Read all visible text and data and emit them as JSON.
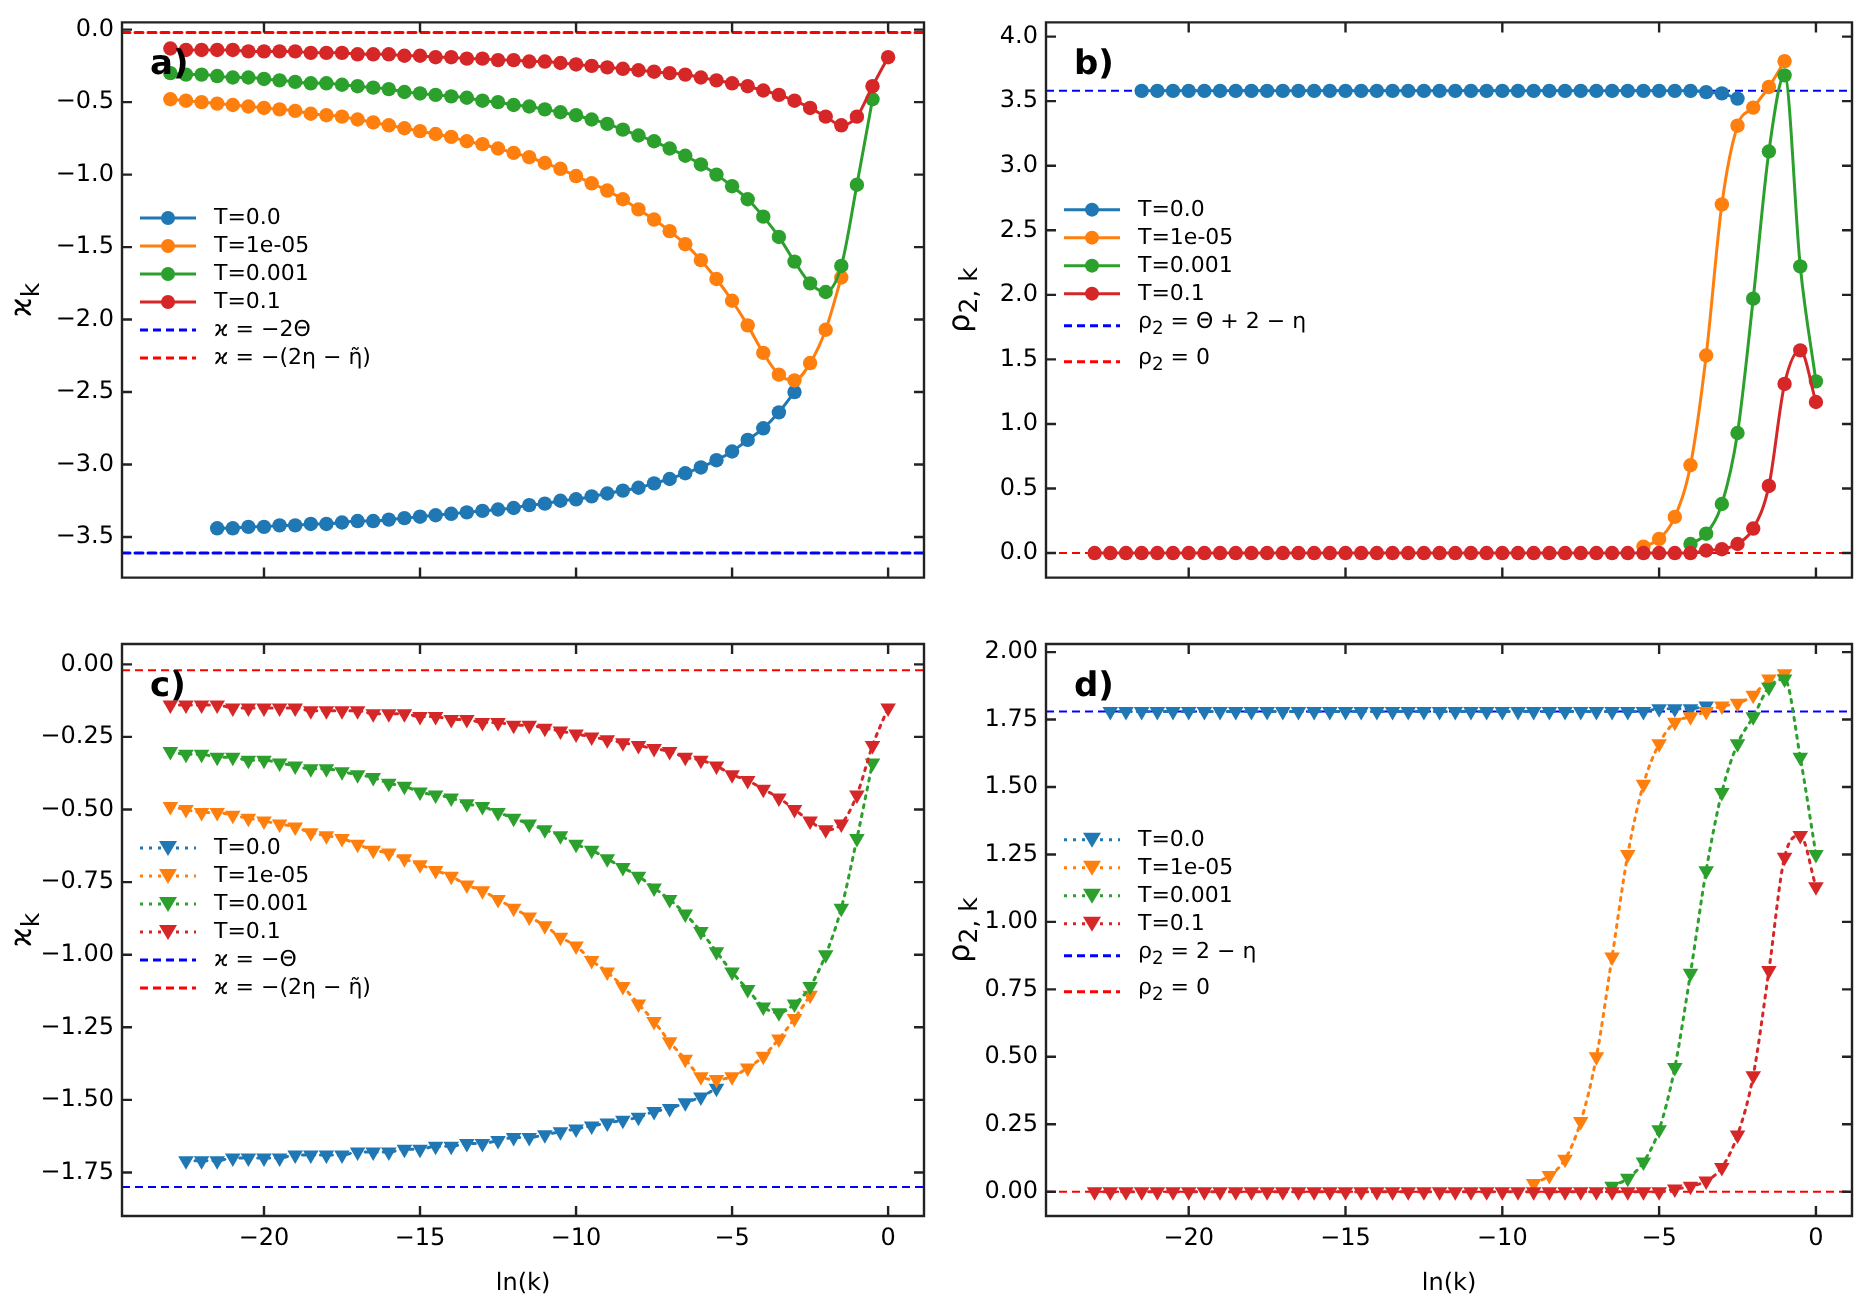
{
  "chart_data": [
    {
      "type": "line",
      "title": "a)",
      "ylabel": "ϰ$_{k}$",
      "legend": "left",
      "marker": "circle",
      "line_style": "solid",
      "tick_labels": "y",
      "xlim": [
        -24.55,
        1.15
      ],
      "ylim": [
        -3.78,
        0.05
      ],
      "xticks": [
        {
          "value": -20,
          "label": null
        },
        {
          "value": -15,
          "label": null
        },
        {
          "value": -10,
          "label": null
        },
        {
          "value": -5,
          "label": null
        },
        {
          "value": 0,
          "label": null
        }
      ],
      "yticks": [
        {
          "value": 0,
          "label": "0.0"
        },
        {
          "value": -0.5,
          "label": "−0.5"
        },
        {
          "value": -1,
          "label": "−1.0"
        },
        {
          "value": -1.5,
          "label": "−1.5"
        },
        {
          "value": -2,
          "label": "−2.0"
        },
        {
          "value": -2.5,
          "label": "−2.5"
        },
        {
          "value": -3,
          "label": "−3.0"
        },
        {
          "value": -3.5,
          "label": "−3.5"
        }
      ],
      "x": [
        -23,
        -22.5,
        -22,
        -21.5,
        -21,
        -20.5,
        -20,
        -19.5,
        -19,
        -18.5,
        -18,
        -17.5,
        -17,
        -16.5,
        -16,
        -15.5,
        -15,
        -14.5,
        -14,
        -13.5,
        -13,
        -12.5,
        -12,
        -11.5,
        -11,
        -10.5,
        -10,
        -9.5,
        -9,
        -8.5,
        -8,
        -7.5,
        -7,
        -6.5,
        -6,
        -5.5,
        -5,
        -4.5,
        -4,
        -3.5,
        -3,
        -2.5,
        -2,
        -1.5,
        -1,
        -0.5,
        0
      ],
      "series": [
        {
          "name": "T=0.0",
          "color": "#1f77b4",
          "x": [
            -21.5,
            -21,
            -20.5,
            -20,
            -19.5,
            -19,
            -18.5,
            -18,
            -17.5,
            -17,
            -16.5,
            -16,
            -15.5,
            -15,
            -14.5,
            -14,
            -13.5,
            -13,
            -12.5,
            -12,
            -11.5,
            -11,
            -10.5,
            -10,
            -9.5,
            -9,
            -8.5,
            -8,
            -7.5,
            -7,
            -6.5,
            -6,
            -5.5,
            -5,
            -4.5,
            -4,
            -3.5,
            -3
          ],
          "values": [
            -3.44,
            -3.44,
            -3.43,
            -3.43,
            -3.42,
            -3.42,
            -3.41,
            -3.41,
            -3.4,
            -3.39,
            -3.39,
            -3.38,
            -3.37,
            -3.36,
            -3.35,
            -3.34,
            -3.33,
            -3.32,
            -3.31,
            -3.3,
            -3.28,
            -3.27,
            -3.25,
            -3.24,
            -3.22,
            -3.2,
            -3.18,
            -3.16,
            -3.13,
            -3.1,
            -3.06,
            -3.02,
            -2.97,
            -2.91,
            -2.83,
            -2.75,
            -2.64,
            -2.5
          ]
        },
        {
          "name": "T=1e-05",
          "color": "#ff7f0e",
          "values": [
            -0.48,
            -0.49,
            -0.5,
            -0.51,
            -0.52,
            -0.53,
            -0.54,
            -0.55,
            -0.56,
            -0.58,
            -0.59,
            -0.6,
            -0.62,
            -0.64,
            -0.66,
            -0.68,
            -0.7,
            -0.72,
            -0.74,
            -0.77,
            -0.79,
            -0.82,
            -0.85,
            -0.88,
            -0.92,
            -0.96,
            -1.01,
            -1.06,
            -1.11,
            -1.17,
            -1.24,
            -1.31,
            -1.39,
            -1.48,
            -1.59,
            -1.72,
            -1.87,
            -2.04,
            -2.23,
            -2.38,
            -2.42,
            -2.3,
            -2.07,
            -1.71,
            null,
            null,
            null
          ]
        },
        {
          "name": "T=0.001",
          "color": "#2ca02c",
          "values": [
            -0.3,
            -0.31,
            -0.31,
            -0.32,
            -0.33,
            -0.33,
            -0.34,
            -0.35,
            -0.36,
            -0.37,
            -0.37,
            -0.38,
            -0.39,
            -0.4,
            -0.41,
            -0.43,
            -0.44,
            -0.45,
            -0.46,
            -0.47,
            -0.49,
            -0.5,
            -0.52,
            -0.53,
            -0.55,
            -0.57,
            -0.59,
            -0.62,
            -0.65,
            -0.69,
            -0.73,
            -0.77,
            -0.82,
            -0.87,
            -0.93,
            -1.0,
            -1.08,
            -1.17,
            -1.29,
            -1.43,
            -1.6,
            -1.75,
            -1.81,
            -1.63,
            -1.07,
            -0.48,
            null
          ]
        },
        {
          "name": "T=0.1",
          "color": "#d62728",
          "values": [
            -0.13,
            -0.14,
            -0.14,
            -0.14,
            -0.14,
            -0.15,
            -0.15,
            -0.15,
            -0.15,
            -0.16,
            -0.16,
            -0.16,
            -0.17,
            -0.17,
            -0.17,
            -0.18,
            -0.18,
            -0.19,
            -0.19,
            -0.2,
            -0.2,
            -0.21,
            -0.21,
            -0.22,
            -0.22,
            -0.23,
            -0.24,
            -0.25,
            -0.26,
            -0.27,
            -0.28,
            -0.29,
            -0.3,
            -0.31,
            -0.33,
            -0.35,
            -0.37,
            -0.39,
            -0.42,
            -0.45,
            -0.49,
            -0.54,
            -0.6,
            -0.66,
            -0.6,
            -0.39,
            -0.19
          ]
        },
        {
          "name": "ϰ = −2Θ",
          "type": "line",
          "color": "#0000ff",
          "line_style": "dashed",
          "marker": "none",
          "x": [
            -24.55,
            1.15
          ],
          "values": [
            -3.61,
            -3.61
          ]
        },
        {
          "name": "ϰ = −(2η − η̃)",
          "type": "line",
          "color": "#ff0000",
          "line_style": "dashed",
          "marker": "none",
          "x": [
            -24.55,
            1.15
          ],
          "values": [
            -0.02,
            -0.02
          ]
        }
      ]
    },
    {
      "type": "line",
      "title": "b)",
      "ylabel": "ρ$_{2, k}$",
      "legend": "left",
      "marker": "circle",
      "line_style": "solid",
      "tick_labels": "y",
      "xlim": [
        -24.55,
        1.15
      ],
      "ylim": [
        -0.19,
        4.11
      ],
      "xticks": [
        {
          "value": -20,
          "label": null
        },
        {
          "value": -15,
          "label": null
        },
        {
          "value": -10,
          "label": null
        },
        {
          "value": -5,
          "label": null
        },
        {
          "value": 0,
          "label": null
        }
      ],
      "yticks": [
        {
          "value": 0,
          "label": "0.0"
        },
        {
          "value": 0.5,
          "label": "0.5"
        },
        {
          "value": 1,
          "label": "1.0"
        },
        {
          "value": 1.5,
          "label": "1.5"
        },
        {
          "value": 2,
          "label": "2.0"
        },
        {
          "value": 2.5,
          "label": "2.5"
        },
        {
          "value": 3,
          "label": "3.0"
        },
        {
          "value": 3.5,
          "label": "3.5"
        },
        {
          "value": 4,
          "label": "4.0"
        }
      ],
      "x": [
        -23,
        -22.5,
        -22,
        -21.5,
        -21,
        -20.5,
        -20,
        -19.5,
        -19,
        -18.5,
        -18,
        -17.5,
        -17,
        -16.5,
        -16,
        -15.5,
        -15,
        -14.5,
        -14,
        -13.5,
        -13,
        -12.5,
        -12,
        -11.5,
        -11,
        -10.5,
        -10,
        -9.5,
        -9,
        -8.5,
        -8,
        -7.5,
        -7,
        -6.5,
        -6,
        -5.5,
        -5,
        -4.5,
        -4,
        -3.5,
        -3,
        -2.5,
        -2,
        -1.5,
        -1,
        -0.5,
        0
      ],
      "series": [
        {
          "name": "T=0.0",
          "color": "#1f77b4",
          "x": [
            -21.5,
            -21,
            -20.5,
            -20,
            -19.5,
            -19,
            -18.5,
            -18,
            -17.5,
            -17,
            -16.5,
            -16,
            -15.5,
            -15,
            -14.5,
            -14,
            -13.5,
            -13,
            -12.5,
            -12,
            -11.5,
            -11,
            -10.5,
            -10,
            -9.5,
            -9,
            -8.5,
            -8,
            -7.5,
            -7,
            -6.5,
            -6,
            -5.5,
            -5,
            -4.5,
            -4,
            -3.5,
            -3,
            -2.5
          ],
          "values": [
            3.58,
            3.58,
            3.58,
            3.58,
            3.58,
            3.58,
            3.58,
            3.58,
            3.58,
            3.58,
            3.58,
            3.58,
            3.58,
            3.58,
            3.58,
            3.58,
            3.58,
            3.58,
            3.58,
            3.58,
            3.58,
            3.58,
            3.58,
            3.58,
            3.58,
            3.58,
            3.58,
            3.58,
            3.58,
            3.58,
            3.58,
            3.58,
            3.58,
            3.58,
            3.58,
            3.58,
            3.57,
            3.56,
            3.52
          ]
        },
        {
          "name": "T=1e-05",
          "color": "#ff7f0e",
          "values": [
            null,
            null,
            null,
            null,
            null,
            null,
            null,
            null,
            null,
            null,
            null,
            null,
            null,
            null,
            null,
            null,
            null,
            null,
            null,
            null,
            null,
            null,
            null,
            null,
            null,
            null,
            null,
            null,
            null,
            null,
            null,
            null,
            null,
            null,
            null,
            0.05,
            0.11,
            0.28,
            0.68,
            1.53,
            2.7,
            3.31,
            3.45,
            3.61,
            3.81,
            null,
            null
          ]
        },
        {
          "name": "T=0.001",
          "color": "#2ca02c",
          "values": [
            null,
            null,
            null,
            null,
            null,
            null,
            null,
            null,
            null,
            null,
            null,
            null,
            null,
            null,
            null,
            null,
            null,
            null,
            null,
            null,
            null,
            null,
            null,
            null,
            null,
            null,
            null,
            null,
            null,
            null,
            null,
            null,
            null,
            null,
            null,
            null,
            null,
            null,
            0.07,
            0.15,
            0.38,
            0.93,
            1.97,
            3.11,
            3.7,
            2.22,
            1.33
          ]
        },
        {
          "name": "T=0.1",
          "color": "#d62728",
          "values": [
            0,
            0,
            0,
            0,
            0,
            0,
            0,
            0,
            0,
            0,
            0,
            0,
            0,
            0,
            0,
            0,
            0,
            0,
            0,
            0,
            0,
            0,
            0,
            0,
            0,
            0,
            0,
            0,
            0,
            0,
            0,
            0,
            0,
            0,
            0,
            0,
            0,
            0,
            0,
            0.02,
            0.03,
            0.07,
            0.19,
            0.52,
            1.31,
            1.57,
            1.17
          ]
        }
      ],
      "ref_lines": [
        {
          "axis": "y",
          "value": 3.58,
          "label": "ρ$_{2}$ = Θ + 2 − η",
          "color": "#0000ff",
          "line_style": "dashed"
        },
        {
          "axis": "y",
          "value": 0,
          "label": "ρ$_{2}$ = 0",
          "color": "#ff0000",
          "line_style": "dashed"
        }
      ]
    },
    {
      "type": "line",
      "title": "c)",
      "ylabel": "ϰ$_{k}$",
      "xlabel": "ln(k)",
      "legend": "left",
      "marker": "triangle",
      "line_style": "dotted",
      "xlim": [
        -24.55,
        1.15
      ],
      "ylim": [
        -1.9,
        0.07
      ],
      "xticks": [
        {
          "value": -20,
          "label": "−20"
        },
        {
          "value": -15,
          "label": "−15"
        },
        {
          "value": -10,
          "label": "−10"
        },
        {
          "value": -5,
          "label": "−5"
        },
        0
      ],
      "yticks": [
        {
          "value": 0,
          "label": "0.00"
        },
        {
          "value": -0.25,
          "label": "−0.25"
        },
        {
          "value": -0.5,
          "label": "−0.50"
        },
        {
          "value": -0.75,
          "label": "−0.75"
        },
        {
          "value": -1,
          "label": "−1.00"
        },
        {
          "value": -1.25,
          "label": "−1.25"
        },
        {
          "value": -1.5,
          "label": "−1.50"
        },
        {
          "value": -1.75,
          "label": "−1.75"
        }
      ],
      "x": [
        -23,
        -22.5,
        -22,
        -21.5,
        -21,
        -20.5,
        -20,
        -19.5,
        -19,
        -18.5,
        -18,
        -17.5,
        -17,
        -16.5,
        -16,
        -15.5,
        -15,
        -14.5,
        -14,
        -13.5,
        -13,
        -12.5,
        -12,
        -11.5,
        -11,
        -10.5,
        -10,
        -9.5,
        -9,
        -8.5,
        -8,
        -7.5,
        -7,
        -6.5,
        -6,
        -5.5,
        -5,
        -4.5,
        -4,
        -3.5,
        -3,
        -2.5,
        -2,
        -1.5,
        -1,
        -0.5,
        0
      ],
      "series": [
        {
          "name": "T=0.0",
          "color": "#1f77b4",
          "x": [
            -22.5,
            -22,
            -21.5,
            -21,
            -20.5,
            -20,
            -19.5,
            -19,
            -18.5,
            -18,
            -17.5,
            -17,
            -16.5,
            -16,
            -15.5,
            -15,
            -14.5,
            -14,
            -13.5,
            -13,
            -12.5,
            -12,
            -11.5,
            -11,
            -10.5,
            -10,
            -9.5,
            -9,
            -8.5,
            -8,
            -7.5,
            -7,
            -6.5,
            -6,
            -5.5
          ],
          "values": [
            -1.71,
            -1.71,
            -1.71,
            -1.7,
            -1.7,
            -1.7,
            -1.7,
            -1.69,
            -1.69,
            -1.69,
            -1.69,
            -1.68,
            -1.68,
            -1.68,
            -1.67,
            -1.67,
            -1.66,
            -1.66,
            -1.65,
            -1.65,
            -1.64,
            -1.63,
            -1.63,
            -1.62,
            -1.61,
            -1.6,
            -1.59,
            -1.58,
            -1.57,
            -1.56,
            -1.54,
            -1.53,
            -1.51,
            -1.49,
            -1.46
          ]
        },
        {
          "name": "T=1e-05",
          "color": "#ff7f0e",
          "values": [
            -0.49,
            -0.5,
            -0.51,
            -0.51,
            -0.52,
            -0.53,
            -0.54,
            -0.55,
            -0.56,
            -0.58,
            -0.59,
            -0.6,
            -0.62,
            -0.64,
            -0.65,
            -0.67,
            -0.69,
            -0.71,
            -0.73,
            -0.76,
            -0.78,
            -0.81,
            -0.84,
            -0.87,
            -0.9,
            -0.94,
            -0.97,
            -1.02,
            -1.06,
            -1.11,
            -1.17,
            -1.23,
            -1.3,
            -1.36,
            -1.42,
            -1.43,
            -1.42,
            -1.39,
            -1.35,
            -1.29,
            -1.22,
            -1.14,
            null,
            null,
            null,
            null,
            null
          ]
        },
        {
          "name": "T=0.001",
          "color": "#2ca02c",
          "values": [
            -0.3,
            -0.31,
            -0.31,
            -0.32,
            -0.32,
            -0.33,
            -0.33,
            -0.34,
            -0.35,
            -0.36,
            -0.36,
            -0.37,
            -0.38,
            -0.39,
            -0.41,
            -0.42,
            -0.44,
            -0.45,
            -0.46,
            -0.48,
            -0.49,
            -0.51,
            -0.53,
            -0.55,
            -0.57,
            -0.59,
            -0.62,
            -0.64,
            -0.67,
            -0.7,
            -0.73,
            -0.77,
            -0.81,
            -0.86,
            -0.92,
            -0.99,
            -1.06,
            -1.12,
            -1.18,
            -1.2,
            -1.17,
            -1.11,
            -1.0,
            -0.84,
            -0.6,
            -0.34,
            null
          ]
        },
        {
          "name": "T=0.1",
          "color": "#d62728",
          "values": [
            -0.14,
            -0.14,
            -0.14,
            -0.14,
            -0.15,
            -0.15,
            -0.15,
            -0.15,
            -0.15,
            -0.16,
            -0.16,
            -0.16,
            -0.16,
            -0.17,
            -0.17,
            -0.17,
            -0.18,
            -0.18,
            -0.19,
            -0.19,
            -0.2,
            -0.2,
            -0.21,
            -0.21,
            -0.22,
            -0.23,
            -0.24,
            -0.25,
            -0.26,
            -0.27,
            -0.28,
            -0.29,
            -0.3,
            -0.32,
            -0.33,
            -0.35,
            -0.38,
            -0.4,
            -0.43,
            -0.46,
            -0.5,
            -0.54,
            -0.57,
            -0.55,
            -0.45,
            -0.28,
            -0.15
          ]
        }
      ],
      "ref_lines": [
        {
          "axis": "y",
          "value": -1.8,
          "label": "ϰ = −Θ",
          "color": "#0000ff",
          "line_style": "dashed"
        },
        {
          "axis": "y",
          "value": -0.02,
          "label": "ϰ = −(2η − η̃)",
          "color": "#ff0000",
          "line_style": "dashed"
        }
      ]
    },
    {
      "type": "line",
      "title": "d)",
      "ylabel": "ρ$_{2, k}$",
      "xlabel": "ln(k)",
      "legend": "left",
      "marker": "triangle",
      "line_style": "dotted",
      "xlim": [
        -24.55,
        1.15
      ],
      "ylim": [
        -0.09,
        2.03
      ],
      "xticks": [
        {
          "value": -20,
          "label": "−20"
        },
        {
          "value": -15,
          "label": "−15"
        },
        {
          "value": -10,
          "label": "−10"
        },
        {
          "value": -5,
          "label": "−5"
        },
        0
      ],
      "yticks": [
        {
          "value": 0,
          "label": "0.00"
        },
        {
          "value": 0.25,
          "label": "0.25"
        },
        {
          "value": 0.5,
          "label": "0.50"
        },
        {
          "value": 0.75,
          "label": "0.75"
        },
        {
          "value": 1,
          "label": "1.00"
        },
        {
          "value": 1.25,
          "label": "1.25"
        },
        {
          "value": 1.5,
          "label": "1.50"
        },
        {
          "value": 1.75,
          "label": "1.75"
        },
        {
          "value": 2,
          "label": "2.00"
        }
      ],
      "x": [
        -23,
        -22.5,
        -22,
        -21.5,
        -21,
        -20.5,
        -20,
        -19.5,
        -19,
        -18.5,
        -18,
        -17.5,
        -17,
        -16.5,
        -16,
        -15.5,
        -15,
        -14.5,
        -14,
        -13.5,
        -13,
        -12.5,
        -12,
        -11.5,
        -11,
        -10.5,
        -10,
        -9.5,
        -9,
        -8.5,
        -8,
        -7.5,
        -7,
        -6.5,
        -6,
        -5.5,
        -5,
        -4.5,
        -4,
        -3.5,
        -3,
        -2.5,
        -2,
        -1.5,
        -1,
        -0.5,
        0
      ],
      "series": [
        {
          "name": "T=0.0",
          "color": "#1f77b4",
          "x": [
            -22.5,
            -22,
            -21.5,
            -21,
            -20.5,
            -20,
            -19.5,
            -19,
            -18.5,
            -18,
            -17.5,
            -17,
            -16.5,
            -16,
            -15.5,
            -15,
            -14.5,
            -14,
            -13.5,
            -13,
            -12.5,
            -12,
            -11.5,
            -11,
            -10.5,
            -10,
            -9.5,
            -9,
            -8.5,
            -8,
            -7.5,
            -7,
            -6.5,
            -6,
            -5.5,
            -5,
            -4.5,
            -4,
            -3.5
          ],
          "values": [
            1.78,
            1.78,
            1.78,
            1.78,
            1.78,
            1.78,
            1.78,
            1.78,
            1.78,
            1.78,
            1.78,
            1.78,
            1.78,
            1.78,
            1.78,
            1.78,
            1.78,
            1.78,
            1.78,
            1.78,
            1.78,
            1.78,
            1.78,
            1.78,
            1.78,
            1.78,
            1.78,
            1.78,
            1.78,
            1.78,
            1.78,
            1.78,
            1.78,
            1.78,
            1.78,
            1.79,
            1.79,
            1.79,
            1.8
          ]
        },
        {
          "name": "T=1e-05",
          "color": "#ff7f0e",
          "values": [
            null,
            null,
            null,
            null,
            null,
            null,
            null,
            null,
            null,
            null,
            null,
            null,
            null,
            null,
            null,
            null,
            null,
            null,
            null,
            null,
            null,
            null,
            null,
            null,
            null,
            null,
            null,
            null,
            0.03,
            0.06,
            0.12,
            0.26,
            0.5,
            0.87,
            1.25,
            1.51,
            1.66,
            1.74,
            1.76,
            1.78,
            1.8,
            1.81,
            1.84,
            1.9,
            1.92,
            null,
            null
          ]
        },
        {
          "name": "T=0.001",
          "color": "#2ca02c",
          "values": [
            null,
            null,
            null,
            null,
            null,
            null,
            null,
            null,
            null,
            null,
            null,
            null,
            null,
            null,
            null,
            null,
            null,
            null,
            null,
            null,
            null,
            null,
            null,
            null,
            null,
            null,
            null,
            null,
            null,
            null,
            null,
            null,
            null,
            0.02,
            0.05,
            0.11,
            0.23,
            0.46,
            0.81,
            1.19,
            1.48,
            1.66,
            1.76,
            1.87,
            1.9,
            1.61,
            1.25
          ]
        },
        {
          "name": "T=0.1",
          "color": "#d62728",
          "values": [
            0,
            0,
            0,
            0,
            0,
            0,
            0,
            0,
            0,
            0,
            0,
            0,
            0,
            0,
            0,
            0,
            0,
            0,
            0,
            0,
            0,
            0,
            0,
            0,
            0,
            0,
            0,
            0,
            0,
            0,
            0,
            0,
            0,
            0,
            0,
            0,
            0,
            0.01,
            0.02,
            0.04,
            0.09,
            0.21,
            0.43,
            0.82,
            1.24,
            1.32,
            1.13
          ]
        }
      ],
      "ref_lines": [
        {
          "axis": "y",
          "value": 1.78,
          "label": "ρ$_{2}$ = 2 − η",
          "color": "#0000ff",
          "line_style": "dashed"
        },
        {
          "axis": "y",
          "value": 0,
          "label": "ρ$_{2}$ = 0",
          "color": "#ff0000",
          "line_style": "dashed"
        }
      ]
    }
  ]
}
